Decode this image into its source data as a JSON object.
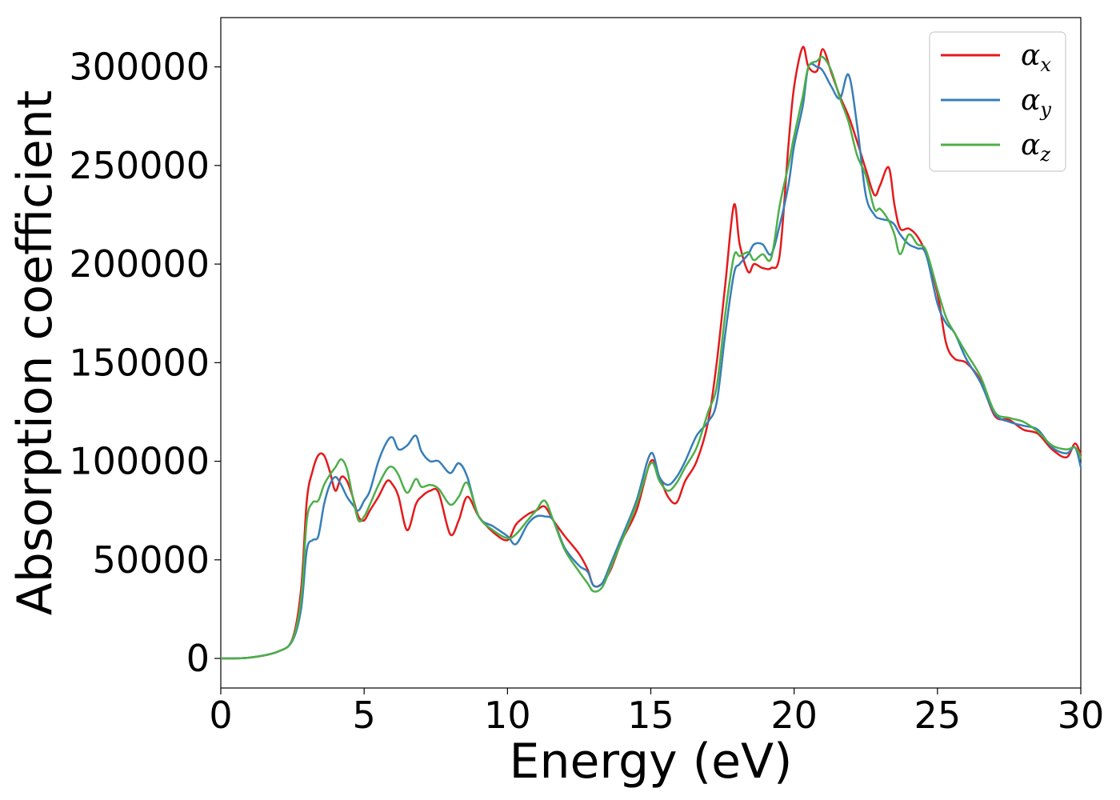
{
  "chart_data": {
    "type": "line",
    "title": "",
    "xlabel": "Energy (eV)",
    "ylabel": "Absorption coefficient",
    "xlim": [
      0,
      30
    ],
    "ylim": [
      -15000,
      325000
    ],
    "xticks": [
      "0",
      "5",
      "10",
      "15",
      "20",
      "25",
      "30"
    ],
    "yticks": [
      "0",
      "50000",
      "100000",
      "150000",
      "200000",
      "250000",
      "300000"
    ],
    "grid": false,
    "legend_position": "top-right",
    "series": [
      {
        "name": "α",
        "subscript": "x",
        "color": "#e41a1c",
        "x": [
          0,
          1,
          2,
          2.5,
          2.8,
          3.0,
          3.2,
          3.4,
          3.6,
          3.8,
          4.0,
          4.2,
          4.4,
          4.6,
          4.8,
          5.0,
          5.2,
          5.5,
          5.8,
          6.0,
          6.2,
          6.5,
          6.8,
          7.0,
          7.3,
          7.6,
          8.0,
          8.3,
          8.6,
          9.0,
          9.5,
          10.0,
          10.3,
          10.7,
          11.0,
          11.3,
          11.6,
          12.0,
          12.5,
          12.8,
          13.0,
          13.3,
          13.6,
          14.0,
          14.5,
          15.0,
          15.3,
          15.6,
          15.9,
          16.2,
          16.6,
          17.0,
          17.3,
          17.6,
          17.9,
          18.1,
          18.4,
          18.6,
          18.9,
          19.2,
          19.5,
          19.8,
          20.0,
          20.3,
          20.5,
          20.8,
          21.0,
          21.3,
          21.6,
          21.9,
          22.2,
          22.5,
          22.8,
          23.0,
          23.3,
          23.5,
          23.7,
          24.0,
          24.3,
          24.6,
          25.0,
          25.3,
          25.6,
          26.0,
          26.5,
          27.0,
          27.5,
          28.0,
          28.5,
          29.0,
          29.5,
          29.8,
          30.0
        ],
        "values": [
          0,
          400,
          3500,
          10000,
          35000,
          80000,
          95000,
          103000,
          103000,
          95000,
          85000,
          92000,
          90000,
          82000,
          72000,
          70000,
          75000,
          82000,
          90000,
          88000,
          82000,
          65000,
          78000,
          82000,
          85000,
          84000,
          63000,
          70000,
          82000,
          72000,
          64000,
          60000,
          68000,
          73000,
          75000,
          77000,
          70000,
          62000,
          53000,
          45000,
          37000,
          38000,
          45000,
          60000,
          75000,
          100000,
          92000,
          82000,
          79000,
          90000,
          100000,
          120000,
          150000,
          190000,
          230000,
          210000,
          196000,
          200000,
          198000,
          198000,
          205000,
          260000,
          290000,
          310000,
          300000,
          298000,
          309000,
          297000,
          285000,
          275000,
          262000,
          248000,
          235000,
          240000,
          249000,
          230000,
          218000,
          218000,
          214000,
          205000,
          185000,
          160000,
          152000,
          150000,
          141000,
          123000,
          121000,
          116000,
          114000,
          106000,
          102000,
          109000,
          103000
        ]
      },
      {
        "name": "α",
        "subscript": "y",
        "color": "#377eb8",
        "x": [
          0,
          1,
          2,
          2.5,
          2.8,
          3.0,
          3.2,
          3.4,
          3.6,
          3.8,
          4.0,
          4.2,
          4.4,
          4.6,
          4.8,
          5.0,
          5.2,
          5.5,
          5.8,
          6.0,
          6.2,
          6.5,
          6.8,
          7.0,
          7.3,
          7.6,
          8.0,
          8.3,
          8.6,
          9.0,
          9.5,
          10.0,
          10.3,
          10.7,
          11.0,
          11.3,
          11.6,
          12.0,
          12.5,
          12.8,
          13.0,
          13.3,
          13.6,
          14.0,
          14.5,
          15.0,
          15.3,
          15.6,
          15.9,
          16.2,
          16.6,
          17.0,
          17.3,
          17.6,
          17.9,
          18.1,
          18.4,
          18.6,
          18.9,
          19.2,
          19.5,
          19.8,
          20.0,
          20.3,
          20.5,
          20.8,
          21.0,
          21.3,
          21.6,
          21.9,
          22.2,
          22.5,
          22.8,
          23.0,
          23.3,
          23.5,
          23.7,
          24.0,
          24.3,
          24.6,
          25.0,
          25.3,
          25.6,
          26.0,
          26.5,
          27.0,
          27.5,
          28.0,
          28.5,
          29.0,
          29.5,
          29.8,
          30.0
        ],
        "values": [
          0,
          400,
          3500,
          9000,
          25000,
          55000,
          60000,
          62000,
          78000,
          88000,
          92000,
          88000,
          82000,
          78000,
          75000,
          80000,
          85000,
          100000,
          110000,
          112000,
          106000,
          108000,
          113000,
          105000,
          100000,
          100000,
          94000,
          99000,
          92000,
          72000,
          67000,
          62000,
          58000,
          68000,
          72000,
          72000,
          70000,
          56000,
          47000,
          44000,
          37000,
          38000,
          48000,
          62000,
          80000,
          104000,
          92000,
          88000,
          92000,
          100000,
          113000,
          120000,
          130000,
          165000,
          195000,
          200000,
          205000,
          210000,
          210000,
          205000,
          220000,
          240000,
          260000,
          280000,
          300000,
          300000,
          298000,
          290000,
          284000,
          296000,
          270000,
          235000,
          225000,
          223000,
          222000,
          220000,
          215000,
          210000,
          208000,
          205000,
          180000,
          170000,
          165000,
          152000,
          140000,
          124000,
          120000,
          118000,
          116000,
          107000,
          104000,
          107000,
          97000
        ]
      },
      {
        "name": "α",
        "subscript": "z",
        "color": "#4daf4a",
        "x": [
          0,
          1,
          2,
          2.5,
          2.8,
          3.0,
          3.2,
          3.4,
          3.6,
          3.8,
          4.0,
          4.2,
          4.4,
          4.6,
          4.8,
          5.0,
          5.2,
          5.5,
          5.8,
          6.0,
          6.2,
          6.5,
          6.8,
          7.0,
          7.3,
          7.6,
          8.0,
          8.3,
          8.6,
          9.0,
          9.5,
          10.0,
          10.3,
          10.7,
          11.0,
          11.3,
          11.6,
          12.0,
          12.5,
          12.8,
          13.0,
          13.3,
          13.6,
          14.0,
          14.5,
          15.0,
          15.3,
          15.6,
          15.9,
          16.2,
          16.6,
          17.0,
          17.3,
          17.6,
          17.9,
          18.1,
          18.4,
          18.6,
          18.9,
          19.2,
          19.5,
          19.8,
          20.0,
          20.3,
          20.5,
          20.8,
          21.0,
          21.3,
          21.6,
          21.9,
          22.2,
          22.5,
          22.8,
          23.0,
          23.3,
          23.5,
          23.7,
          24.0,
          24.3,
          24.6,
          25.0,
          25.3,
          25.6,
          26.0,
          26.5,
          27.0,
          27.5,
          28.0,
          28.5,
          29.0,
          29.5,
          29.8,
          30.0
        ],
        "values": [
          0,
          400,
          3500,
          9500,
          30000,
          70000,
          79000,
          80000,
          88000,
          93000,
          97000,
          101000,
          96000,
          82000,
          70000,
          72000,
          78000,
          88000,
          96000,
          97000,
          93000,
          84000,
          91000,
          87000,
          88000,
          86000,
          78000,
          82000,
          89000,
          72000,
          65000,
          61000,
          63000,
          70000,
          75000,
          80000,
          70000,
          55000,
          44000,
          38000,
          34000,
          36000,
          46000,
          60000,
          78000,
          99000,
          90000,
          85000,
          89000,
          97000,
          107000,
          125000,
          138000,
          175000,
          204000,
          204000,
          206000,
          202000,
          205000,
          203000,
          230000,
          250000,
          265000,
          285000,
          300000,
          303000,
          305000,
          298000,
          284000,
          272000,
          255000,
          245000,
          228000,
          228000,
          222000,
          215000,
          205000,
          215000,
          210000,
          207000,
          187000,
          173000,
          165000,
          155000,
          143000,
          125000,
          122000,
          120000,
          115000,
          108000,
          106000,
          107000,
          102000
        ]
      }
    ]
  }
}
